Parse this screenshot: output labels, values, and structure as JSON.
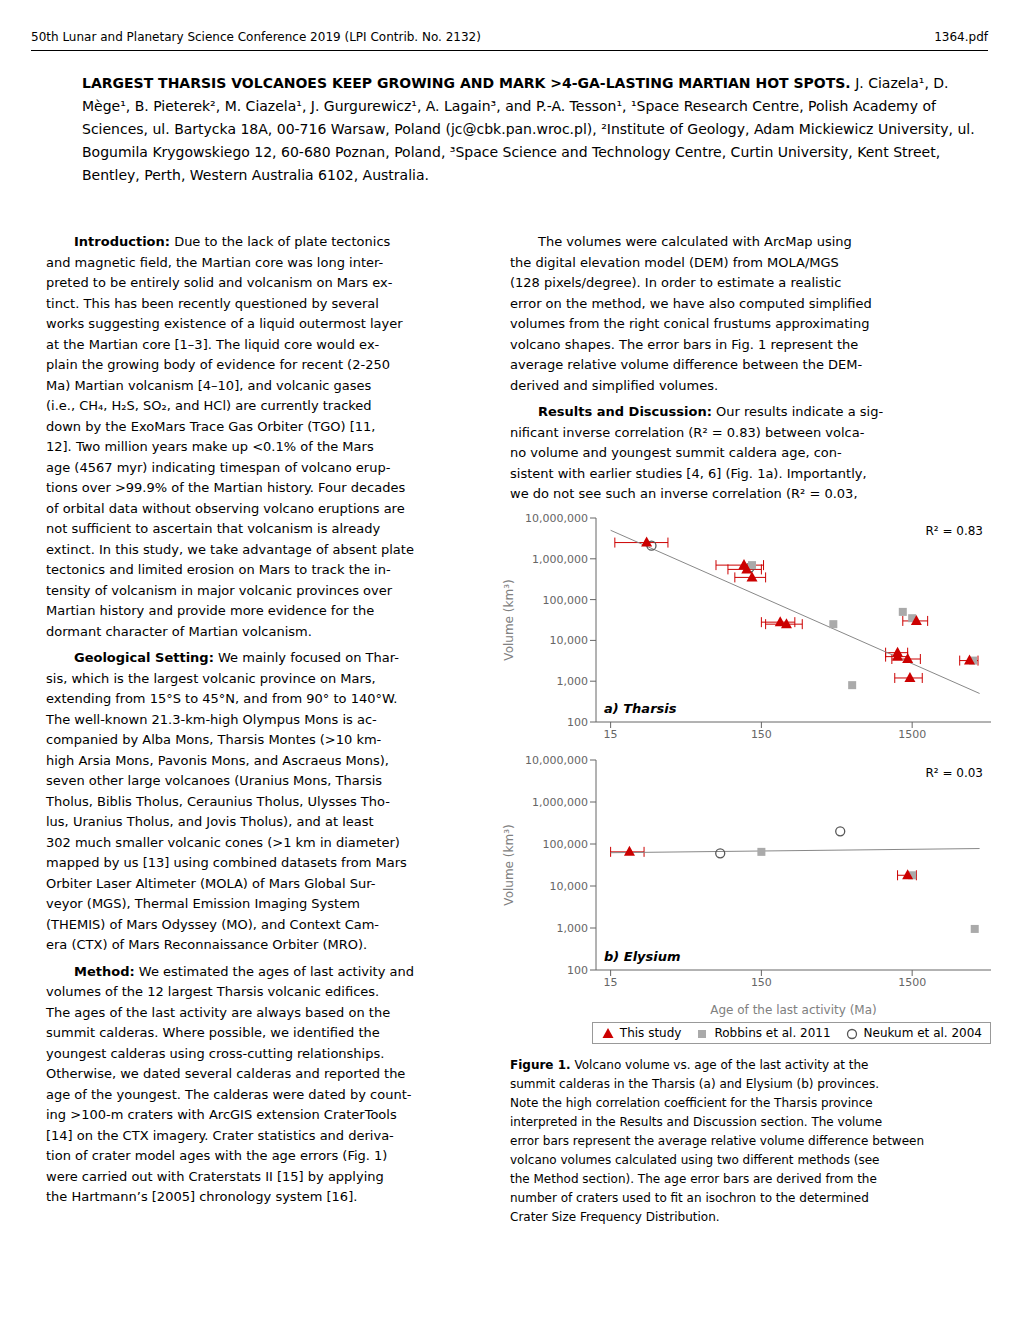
{
  "header": [
    "50th Lunar and Planetary Science Conference 2019 (LPI Contrib. No. 2132)",
    "1364.pdf"
  ],
  "title": "LARGEST THARSIS VOLCANOES KEEP GROWING AND MARK >4-GA-LASTING MARTIAN HOT SPOTS.",
  "subtitle": "J. Ciazela¹, D. Mège¹, B. Pieterek², M. Ciazela¹, J. Gurgurewicz¹, A. Lagain³, and P.-A. Tesson¹, ¹Space Research Centre, Polish Academy of Sciences, ul. Bartycka 18A, 00-716 Warsaw, Poland (jc@cbk.pan.wroc.pl), ²Institute of Geology, Adam Mickiewicz University, ul. Bogumila Krygowskiego 12, 60-680 Poznan, Poland, ³Space Science and Technology Centre, Curtin University, Kent Street, Bentley, Perth, Western Australia 6102, Australia.",
  "annotations": [
    {
      "heading": "Introduction:",
      "lines": [
        "Due to the lack of plate tectonics",
        "and magnetic field, the Martian core was long inter-",
        "preted to be entirely solid and volcanism on Mars ex-",
        "tinct. This has been recently questioned by several",
        "works suggesting existence of a liquid outermost layer",
        "at the Martian core [1–3]. The liquid core would ex-",
        "plain the growing body of evidence for recent (2-250",
        "Ma) Martian volcanism [4–10], and volcanic gases",
        "(i.e., CH₄, H₂S, SO₂, and HCl) are currently tracked",
        "down by the ExoMars Trace Gas Orbiter (TGO) [11,",
        "12]. Two million years make up <0.1% of the Mars",
        "age (4567 myr) indicating timespan of volcano erup-",
        "tions over >99.9% of the Martian history. Four decades",
        "of orbital data without observing volcano eruptions are",
        "not sufficient to ascertain that volcanism is already",
        "extinct. In this study, we take advantage of absent plate",
        "tectonics and limited erosion on Mars to track the in-",
        "tensity of volcanism in major volcanic provinces over",
        "Martian history and provide more evidence for the",
        "dormant character of Martian volcanism."
      ]
    },
    {
      "heading": "Geological Setting:",
      "lines": [
        "We mainly focused on Thar-",
        "sis, which is the largest volcanic province on Mars,",
        "extending from 15°S to 45°N, and from 90° to 140°W.",
        "The well-known 21.3-km-high Olympus Mons is ac-",
        "companied by Alba Mons, Tharsis Montes (>10 km-",
        "high Arsia Mons, Pavonis Mons, and Ascraeus Mons),",
        "seven other large volcanoes (Uranius Mons, Tharsis",
        "Tholus, Biblis Tholus, Ceraunius Tholus, Ulysses Tho-",
        "lus, Uranius Tholus, and Jovis Tholus), and at least",
        "302 much smaller volcanic cones (>1 km in diameter)",
        "mapped by us [13] using combined datasets from Mars",
        "Orbiter Laser Altimeter (MOLA) of Mars Global Sur-",
        "veyor (MGS), Thermal Emission Imaging System",
        "(THEMIS) of Mars Odyssey (MO), and Context Cam-",
        "era (CTX) of Mars Reconnaissance Orbiter (MRO)."
      ]
    },
    {
      "heading": "Method:",
      "lines": [
        "We estimated the ages of last activity and",
        "volumes of the 12 largest Tharsis volcanic edifices.",
        "The ages of the last activity are always based on the",
        "summit calderas. Where possible, we identified the",
        "youngest calderas using cross-cutting relationships.",
        "Otherwise, we dated several calderas and reported the",
        "age of the youngest. The calderas were dated by count-",
        "ing >100-m craters with ArcGIS extension CraterTools",
        "[14] on the CTX imagery. Crater statistics and deriva-",
        "tion of crater model ages with the age errors (Fig. 1)",
        "were carried out with Craterstats II [15] by applying",
        "the Hartmann’s [2005] chronology system [16]."
      ]
    },
    {
      "lines": [
        "The volumes were calculated with ArcMap using",
        "the digital elevation model (DEM) from MOLA/MGS",
        "(128 pixels/degree). In order to estimate a realistic",
        "error on the method, we have also computed simplified",
        "volumes from the right conical frustums approximating",
        "volcano shapes. The error bars in Fig. 1 represent the",
        "average relative volume difference between the DEM-",
        "derived and simplified volumes."
      ]
    },
    {
      "heading": "Results and Discussion:",
      "lines": [
        "Our results indicate a sig-",
        "nificant inverse correlation (R² = 0.83) between volca-",
        "no volume and youngest summit caldera age, con-",
        "sistent with earlier studies [4, 6] (Fig. 1a). Importantly,",
        "we do not see such an inverse correlation (R² = 0.03,"
      ]
    }
  ],
  "caption": {
    "heading": "Figure 1.",
    "lines": [
      "Volcano volume vs. age of the last activity at the",
      "summit calderas in the Tharsis (a) and Elysium (b) provinces.",
      "Note the high correlation coefficient for the Tharsis province",
      "interpreted in the Results and Discussion section. The volume",
      "error bars represent the average relative volume difference between",
      "volcano volumes calculated using two different methods (see",
      "the Method section). The age error bars are derived from the",
      "number of craters used to fit an isochron to the determined",
      "Crater Size Frequency Distribution."
    ]
  },
  "chart_data": [
    {
      "type": "scatter",
      "title": "a) Tharsis",
      "annotations": [
        "R² = 0.83"
      ],
      "ylabel": "Volume (km³)",
      "log": true,
      "grid": false,
      "xlim": [
        12,
        5000
      ],
      "xticks": [
        15,
        150,
        1500
      ],
      "ylim": [
        100,
        10000000
      ],
      "yticks": [
        100,
        {
          "value": 1000,
          "label": "1,000"
        },
        {
          "value": 10000,
          "label": "10,000"
        },
        {
          "value": 100000,
          "label": "100,000"
        },
        {
          "value": 1000000,
          "label": "1,000,000"
        },
        {
          "value": 10000000,
          "label": "10,000,000"
        }
      ],
      "series": [
        {
          "name": "This study",
          "type": "scatter",
          "marker": "triangle",
          "color": "#CC0000",
          "x": [
            26,
            115,
            120,
            130,
            200,
            220,
            1200,
            1200,
            1400,
            1450,
            1600,
            3600
          ],
          "values": [
            2500000,
            700000,
            550000,
            350000,
            28000,
            25000,
            5000,
            4000,
            3500,
            1200,
            30000,
            3200
          ],
          "xerr": [
            10,
            40,
            30,
            30,
            50,
            60,
            200,
            200,
            300,
            300,
            300,
            500
          ]
        },
        {
          "name": "Robbins et al. 2011",
          "type": "scatter",
          "marker": "square",
          "color": "#AAAAAA",
          "x": [
            130,
            450,
            600,
            1300,
            1500,
            3800
          ],
          "values": [
            700000,
            25000,
            800,
            50000,
            35000,
            3200
          ]
        },
        {
          "name": "Neukum et al. 2004",
          "type": "scatter",
          "marker": "hollow_circle",
          "color": "#555555",
          "x": [
            28,
            125
          ],
          "values": [
            2100000,
            600000
          ]
        },
        {
          "type": "line",
          "color": "#888888",
          "x": [
            15,
            4200
          ],
          "values": [
            5000000,
            500
          ]
        }
      ]
    },
    {
      "type": "scatter",
      "title": "b) Elysium",
      "annotations": [
        "R² = 0.03"
      ],
      "xlabel": "Age of the last activity (Ma)",
      "ylabel": "Volume (km³)",
      "log": true,
      "grid": false,
      "legend": "lower right",
      "xlim": [
        12,
        5000
      ],
      "xticks": [
        15,
        150,
        1500
      ],
      "ylim": [
        100,
        10000000
      ],
      "yticks": [
        100,
        {
          "value": 1000,
          "label": "1,000"
        },
        {
          "value": 10000,
          "label": "10,000"
        },
        {
          "value": 100000,
          "label": "100,000"
        },
        {
          "value": 1000000,
          "label": "1,000,000"
        },
        {
          "value": 10000000,
          "label": "10,000,000"
        }
      ],
      "series": [
        {
          "name": "This study",
          "type": "scatter",
          "marker": "triangle",
          "color": "#CC0000",
          "x": [
            20,
            1400
          ],
          "values": [
            65000,
            18000
          ],
          "xerr": [
            5,
            200
          ]
        },
        {
          "name": "Robbins et al. 2011",
          "type": "scatter",
          "marker": "square",
          "color": "#AAAAAA",
          "x": [
            150,
            1500,
            3900
          ],
          "values": [
            65000,
            18000,
            950
          ]
        },
        {
          "name": "Neukum et al. 2004",
          "type": "scatter",
          "marker": "hollow_circle",
          "color": "#555555",
          "x": [
            80,
            500
          ],
          "values": [
            60000,
            200000
          ]
        },
        {
          "type": "line",
          "color": "#888888",
          "x": [
            15,
            4200
          ],
          "values": [
            62000,
            78000
          ]
        }
      ]
    }
  ]
}
